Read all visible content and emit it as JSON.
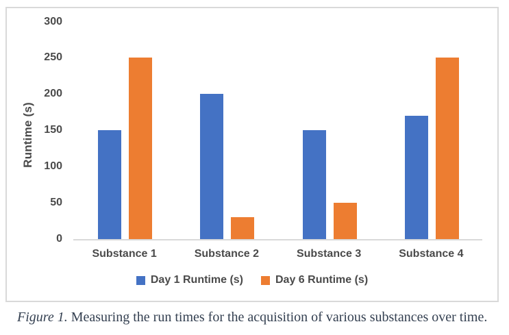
{
  "chart_data": {
    "type": "bar",
    "title": "",
    "categories": [
      "Substance 1",
      "Substance 2",
      "Substance 3",
      "Substance 4"
    ],
    "series": [
      {
        "name": "Day 1 Runtime (s)",
        "color": "#4472C4",
        "values": [
          150,
          200,
          150,
          170
        ]
      },
      {
        "name": "Day 6 Runtime (s)",
        "color": "#ED7D31",
        "values": [
          250,
          30,
          50,
          250
        ]
      }
    ],
    "xlabel": "",
    "ylabel": "Runtime (s)",
    "ylim": [
      0,
      300
    ],
    "yticks": [
      0,
      50,
      100,
      150,
      200,
      250,
      300
    ],
    "grid": false,
    "legend_position": "bottom"
  },
  "caption": {
    "label": "Figure 1.",
    "text": " Measuring the run times for the acquisition of various substances over time."
  },
  "colors": {
    "series_blue": "#4472C4",
    "series_orange": "#ED7D31",
    "axis_text": "#4A4A4A",
    "axis_line": "#D9D9D9",
    "frame_border": "#D9D9D9",
    "caption_text": "#333F50",
    "background": "#FFFFFF"
  }
}
